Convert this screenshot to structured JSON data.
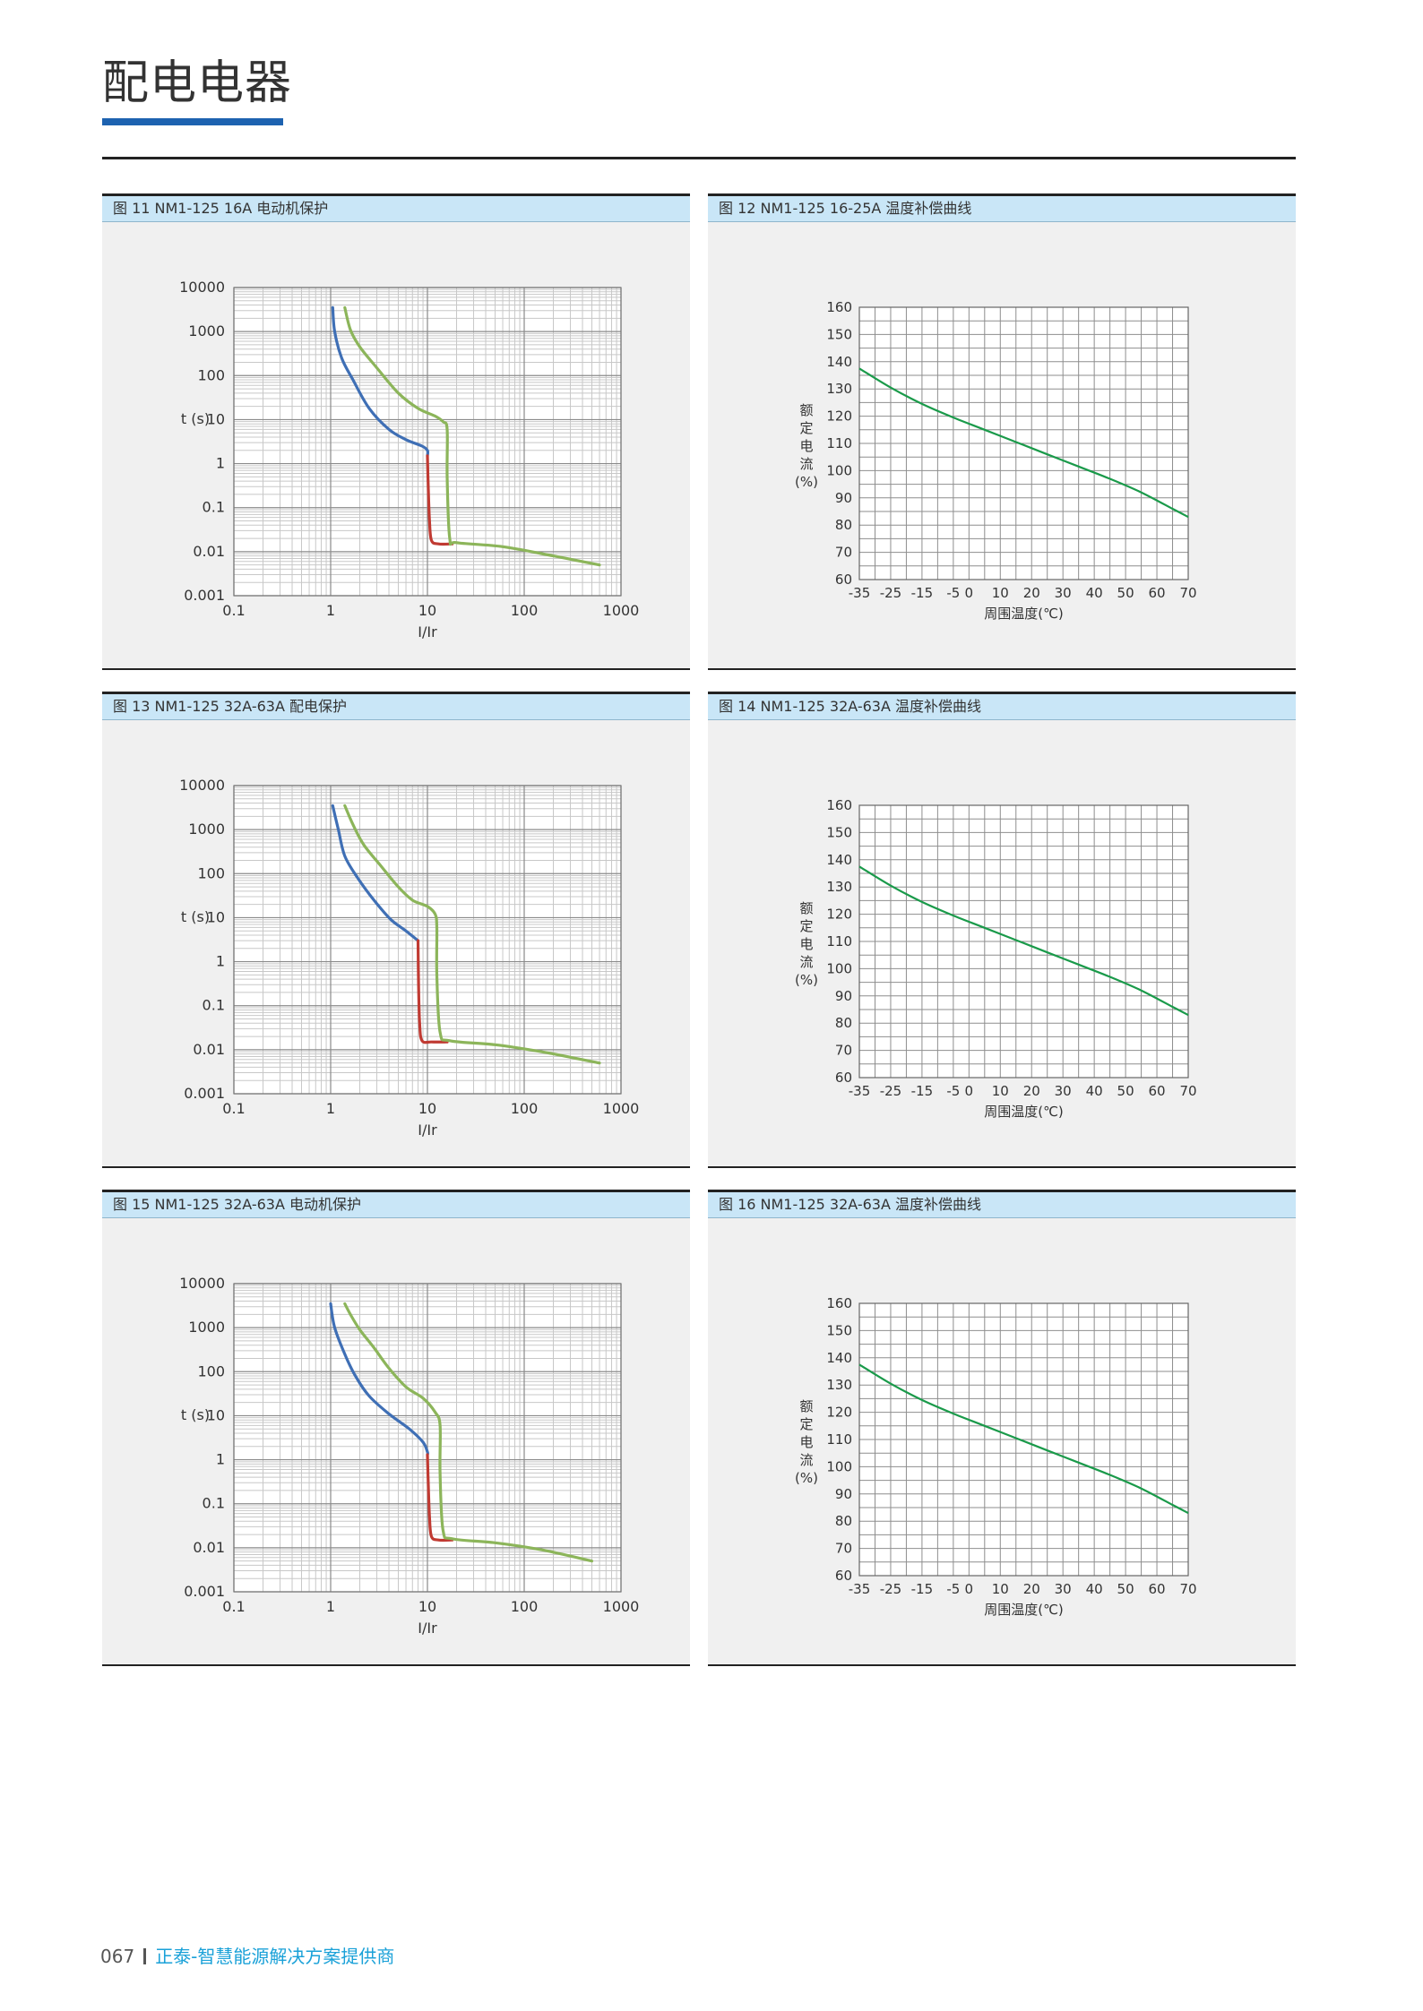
{
  "header": {
    "title": "配电电器"
  },
  "footer": {
    "page_number": "067",
    "tagline": "正泰-智慧能源解决方案提供商"
  },
  "colors": {
    "accent": "#1d62b0",
    "panel_header": "#c9e6f7",
    "curve_blue": "#3f6fb5",
    "curve_green": "#8cb55a",
    "curve_red": "#c03a32",
    "temp_curve": "#1a9a4a"
  },
  "panels": [
    {
      "caption": "图 11 NM1-125 16A 电动机保护"
    },
    {
      "caption": "图 12 NM1-125 16-25A 温度补偿曲线"
    },
    {
      "caption": "图 13 NM1-125 32A-63A 配电保护"
    },
    {
      "caption": "图 14 NM1-125 32A-63A 温度补偿曲线"
    },
    {
      "caption": "图 15 NM1-125 32A-63A 电动机保护"
    },
    {
      "caption": "图 16 NM1-125 32A-63A 温度补偿曲线"
    }
  ],
  "chart_data": [
    {
      "type": "line",
      "scale": "log-log",
      "xlabel": "I/Ir",
      "ylabel": "t (s)",
      "xlim": [
        0.1,
        1000
      ],
      "ylim": [
        0.001,
        10000
      ],
      "grid": true,
      "x_ticks": [
        "0.1",
        "1",
        "10",
        "100",
        "1000"
      ],
      "y_ticks": [
        "10000",
        "1000",
        "100",
        "10",
        "1",
        "0.1",
        "0.01",
        "0.001"
      ],
      "series": [
        {
          "color": "#3f6fb5",
          "x": [
            1.05,
            1.1,
            1.3,
            1.7,
            2.5,
            4,
            6,
            8.8,
            10,
            10
          ],
          "y": [
            3500,
            1000,
            250,
            80,
            18,
            6,
            3.5,
            2.5,
            2,
            1.5
          ]
        },
        {
          "color": "#c03a32",
          "x": [
            10,
            10.2,
            10.5,
            11,
            13,
            18
          ],
          "y": [
            1.5,
            0.3,
            0.05,
            0.018,
            0.015,
            0.015
          ]
        },
        {
          "color": "#8cb55a",
          "x": [
            1.4,
            1.6,
            2,
            3,
            5,
            8,
            12,
            14.5,
            16,
            16,
            17,
            20,
            60,
            200,
            600
          ],
          "y": [
            3500,
            1100,
            450,
            150,
            40,
            18,
            12,
            9,
            6,
            0.5,
            0.02,
            0.016,
            0.013,
            0.008,
            0.005
          ]
        }
      ]
    },
    {
      "type": "line",
      "xlabel": "周围温度(℃)",
      "ylabel": [
        "额",
        "定",
        "电",
        "流",
        "(%)"
      ],
      "xlim": [
        -35,
        70
      ],
      "ylim": [
        60,
        160
      ],
      "grid": true,
      "x_ticks": [
        "-35",
        "-25",
        "-15",
        "-5",
        "0",
        "10",
        "20",
        "30",
        "40",
        "50",
        "60",
        "70"
      ],
      "y_ticks": [
        "160",
        "150",
        "140",
        "130",
        "120",
        "110",
        "100",
        "90",
        "80",
        "70",
        "60"
      ],
      "series": [
        {
          "color": "#1a9a4a",
          "x": [
            -35,
            -25,
            -15,
            -5,
            5,
            15,
            25,
            35,
            45,
            55,
            65,
            70
          ],
          "y": [
            137.5,
            130.5,
            124.5,
            119.5,
            115,
            110.5,
            106,
            101.5,
            97,
            92,
            86,
            83
          ]
        }
      ]
    },
    {
      "type": "line",
      "scale": "log-log",
      "xlabel": "I/Ir",
      "ylabel": "t (s)",
      "xlim": [
        0.1,
        1000
      ],
      "ylim": [
        0.001,
        10000
      ],
      "grid": true,
      "x_ticks": [
        "0.1",
        "1",
        "10",
        "100",
        "1000"
      ],
      "y_ticks": [
        "10000",
        "1000",
        "100",
        "10",
        "1",
        "0.1",
        "0.01",
        "0.001"
      ],
      "series": [
        {
          "color": "#3f6fb5",
          "x": [
            1.05,
            1.2,
            1.4,
            1.9,
            2.8,
            4.2,
            6,
            8
          ],
          "y": [
            3500,
            1000,
            250,
            80,
            25,
            9,
            5,
            3
          ]
        },
        {
          "color": "#c03a32",
          "x": [
            8,
            8.1,
            8.3,
            8.8,
            11,
            16
          ],
          "y": [
            3,
            0.3,
            0.04,
            0.016,
            0.015,
            0.015
          ]
        },
        {
          "color": "#8cb55a",
          "x": [
            1.4,
            1.7,
            2.2,
            3.3,
            5,
            7,
            10,
            12,
            12.5,
            12.5,
            13.5,
            17,
            50,
            150,
            600
          ],
          "y": [
            3500,
            1300,
            450,
            150,
            50,
            25,
            18,
            12,
            6,
            0.5,
            0.025,
            0.016,
            0.013,
            0.009,
            0.005
          ]
        }
      ]
    },
    {
      "type": "line",
      "xlabel": "周围温度(℃)",
      "ylabel": [
        "额",
        "定",
        "电",
        "流",
        "(%)"
      ],
      "xlim": [
        -35,
        70
      ],
      "ylim": [
        60,
        160
      ],
      "grid": true,
      "x_ticks": [
        "-35",
        "-25",
        "-15",
        "-5",
        "0",
        "10",
        "20",
        "30",
        "40",
        "50",
        "60",
        "70"
      ],
      "y_ticks": [
        "160",
        "150",
        "140",
        "130",
        "120",
        "110",
        "100",
        "90",
        "80",
        "70",
        "60"
      ],
      "series": [
        {
          "color": "#1a9a4a",
          "x": [
            -35,
            -25,
            -15,
            -5,
            5,
            15,
            25,
            35,
            45,
            55,
            65,
            70
          ],
          "y": [
            137.5,
            130.5,
            124.5,
            119.5,
            115,
            110.5,
            106,
            101.5,
            97,
            92,
            86,
            83
          ]
        }
      ]
    },
    {
      "type": "line",
      "scale": "log-log",
      "xlabel": "I/Ir",
      "ylabel": "t (s)",
      "xlim": [
        0.1,
        1000
      ],
      "ylim": [
        0.001,
        10000
      ],
      "grid": true,
      "x_ticks": [
        "0.1",
        "1",
        "10",
        "100",
        "1000"
      ],
      "y_ticks": [
        "10000",
        "1000",
        "100",
        "10",
        "1",
        "0.1",
        "0.01",
        "0.001"
      ],
      "series": [
        {
          "color": "#3f6fb5",
          "x": [
            1.0,
            1.1,
            1.4,
            1.8,
            2.5,
            4,
            6.5,
            9,
            10,
            10
          ],
          "y": [
            3500,
            1000,
            250,
            80,
            28,
            11,
            5,
            2.5,
            1.5,
            1.3
          ]
        },
        {
          "color": "#c03a32",
          "x": [
            10,
            10.2,
            10.5,
            11,
            13,
            18
          ],
          "y": [
            1.3,
            0.3,
            0.05,
            0.018,
            0.015,
            0.015
          ]
        },
        {
          "color": "#8cb55a",
          "x": [
            1.4,
            1.6,
            2,
            2.8,
            4,
            6,
            9,
            12,
            13.5,
            13.5,
            14.5,
            18,
            50,
            150,
            500
          ],
          "y": [
            3500,
            2000,
            900,
            350,
            120,
            45,
            25,
            12,
            6,
            0.5,
            0.025,
            0.016,
            0.013,
            0.009,
            0.005
          ]
        }
      ]
    },
    {
      "type": "line",
      "xlabel": "周围温度(℃)",
      "ylabel": [
        "额",
        "定",
        "电",
        "流",
        "(%)"
      ],
      "xlim": [
        -35,
        70
      ],
      "ylim": [
        60,
        160
      ],
      "grid": true,
      "x_ticks": [
        "-35",
        "-25",
        "-15",
        "-5",
        "0",
        "10",
        "20",
        "30",
        "40",
        "50",
        "60",
        "70"
      ],
      "y_ticks": [
        "160",
        "150",
        "140",
        "130",
        "120",
        "110",
        "100",
        "90",
        "80",
        "70",
        "60"
      ],
      "series": [
        {
          "color": "#1a9a4a",
          "x": [
            -35,
            -25,
            -15,
            -5,
            5,
            15,
            25,
            35,
            45,
            55,
            65,
            70
          ],
          "y": [
            137.5,
            130.5,
            124.5,
            119.5,
            115,
            110.5,
            106,
            101.5,
            97,
            92,
            86,
            83
          ]
        }
      ]
    }
  ]
}
